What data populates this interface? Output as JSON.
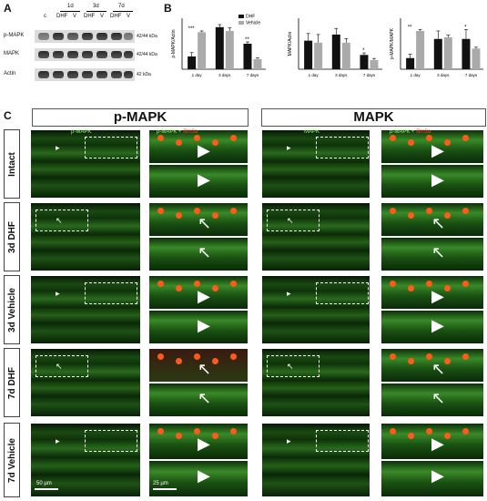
{
  "panels": {
    "a": "A",
    "b": "B",
    "c": "C"
  },
  "blot": {
    "times": [
      "1d",
      "3d",
      "7d"
    ],
    "lanes": [
      "c",
      "DHF",
      "V",
      "DHF",
      "V",
      "DHF",
      "V"
    ],
    "rows": [
      {
        "label": "p-MAPK",
        "kda": "42/44 kDa"
      },
      {
        "label": "MAPK",
        "kda": "42/44 kDa"
      },
      {
        "label": "Actin",
        "kda": "42 kDa"
      }
    ]
  },
  "colors": {
    "dhf": "#111111",
    "vehicle": "#aaaaaa",
    "green": "#9cff7a",
    "red": "#ff3a2a"
  },
  "chart_data": [
    {
      "type": "bar",
      "ylabel": "p-MAPK/Actin",
      "categories": [
        "1 day",
        "3 days",
        "7 days"
      ],
      "series": [
        {
          "name": "DHF",
          "values": [
            0.5,
            1.65,
            1.0
          ],
          "err": [
            0.15,
            0.1,
            0.07
          ]
        },
        {
          "name": "Vehicle",
          "values": [
            1.45,
            1.5,
            0.4
          ],
          "err": [
            0.05,
            0.12,
            0.04
          ]
        }
      ],
      "sig": [
        "***",
        "",
        "**"
      ],
      "ylim": [
        0,
        2
      ],
      "legend": [
        "DHF",
        "Vehicle"
      ]
    },
    {
      "type": "bar",
      "ylabel": "MAPK/Actin",
      "categories": [
        "1 day",
        "3 days",
        "7 days"
      ],
      "series": [
        {
          "name": "DHF",
          "values": [
            1.4,
            1.7,
            0.7
          ],
          "err": [
            0.35,
            0.3,
            0.1
          ]
        },
        {
          "name": "Vehicle",
          "values": [
            1.3,
            1.3,
            0.45
          ],
          "err": [
            0.4,
            0.2,
            0.08
          ]
        }
      ],
      "sig": [
        "",
        "",
        "*"
      ],
      "ylim": [
        0,
        2.5
      ]
    },
    {
      "type": "bar",
      "ylabel": "p-MAPK/MAPK",
      "categories": [
        "1 day",
        "3 days",
        "7 days"
      ],
      "series": [
        {
          "name": "DHF",
          "values": [
            0.35,
            0.95,
            0.95
          ],
          "err": [
            0.12,
            0.25,
            0.3
          ]
        },
        {
          "name": "Vehicle",
          "values": [
            1.2,
            1.0,
            0.65
          ],
          "err": [
            0.05,
            0.07,
            0.04
          ]
        }
      ],
      "sig": [
        "**",
        "",
        "*"
      ],
      "ylim": [
        0,
        1.6
      ]
    }
  ],
  "headers": {
    "pmapk": "p-MAPK",
    "mapk": "MAPK"
  },
  "rows": [
    "Intact",
    "3d DHF",
    "3d Vehicle",
    "7d DHF",
    "7d Vehicle"
  ],
  "channel_labels": {
    "pmapk": "p-MAPK",
    "pmapk_merge": "p-MAPK +",
    "mapk": "MAPK",
    "mapk_merge": "p-MAPK +",
    "brn3a": "Brn3a"
  },
  "scalebars": {
    "big": "50 µm",
    "zoom": "25 µm"
  }
}
